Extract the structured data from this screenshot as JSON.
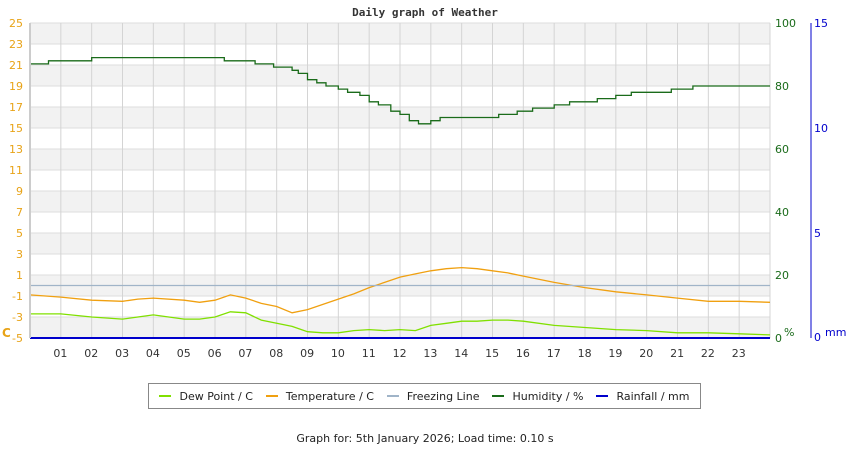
{
  "chart_data": {
    "type": "line",
    "title": "Daily graph of Weather",
    "x_ticks": [
      "01",
      "02",
      "03",
      "04",
      "05",
      "06",
      "07",
      "08",
      "09",
      "10",
      "11",
      "12",
      "13",
      "14",
      "15",
      "16",
      "17",
      "18",
      "19",
      "20",
      "21",
      "22",
      "23"
    ],
    "x_range_hours": [
      0,
      24
    ],
    "left_axis": {
      "label": "C",
      "range": [
        -5,
        25
      ],
      "ticks": [
        25,
        23,
        21,
        19,
        17,
        15,
        13,
        11,
        9,
        7,
        5,
        3,
        1,
        -1,
        -3,
        -5
      ],
      "color": "#e8a317"
    },
    "right_axis_humidity": {
      "label": "%",
      "range": [
        0,
        100
      ],
      "ticks": [
        100,
        80,
        60,
        40,
        20,
        0
      ],
      "color": "#1a6b1a"
    },
    "right_axis_rain": {
      "label": "mm",
      "range": [
        0,
        15
      ],
      "ticks": [
        15,
        10,
        5,
        0
      ],
      "color": "#0000cc"
    },
    "grid": true,
    "legend_position": "bottom",
    "series": [
      {
        "name": "Dew Point / C",
        "color": "#80e000",
        "axis": "left",
        "x": [
          0,
          1,
          2,
          3,
          3.5,
          4,
          5,
          5.5,
          6,
          6.5,
          7,
          7.5,
          8,
          8.5,
          9,
          9.5,
          10,
          10.5,
          11,
          11.5,
          12,
          12.5,
          13,
          13.5,
          14,
          14.5,
          15,
          15.5,
          16,
          17,
          18,
          19,
          20,
          21,
          22,
          23,
          24
        ],
        "y": [
          -2.7,
          -2.7,
          -3.0,
          -3.2,
          -3.0,
          -2.8,
          -3.2,
          -3.2,
          -3.0,
          -2.5,
          -2.6,
          -3.3,
          -3.6,
          -3.9,
          -4.4,
          -4.5,
          -4.5,
          -4.3,
          -4.2,
          -4.3,
          -4.2,
          -4.3,
          -3.8,
          -3.6,
          -3.4,
          -3.4,
          -3.3,
          -3.3,
          -3.4,
          -3.8,
          -4.0,
          -4.2,
          -4.3,
          -4.5,
          -4.5,
          -4.6,
          -4.7
        ]
      },
      {
        "name": "Temperature / C",
        "color": "#f0a010",
        "axis": "left",
        "x": [
          0,
          1,
          2,
          3,
          3.5,
          4,
          5,
          5.5,
          6,
          6.5,
          7,
          7.5,
          8,
          8.5,
          9,
          9.5,
          10,
          10.5,
          11,
          11.5,
          12,
          12.5,
          13,
          13.5,
          14,
          14.5,
          15,
          15.5,
          16,
          17,
          18,
          19,
          20,
          21,
          22,
          23,
          24
        ],
        "y": [
          -0.9,
          -1.1,
          -1.4,
          -1.5,
          -1.3,
          -1.2,
          -1.4,
          -1.6,
          -1.4,
          -0.9,
          -1.2,
          -1.7,
          -2.0,
          -2.6,
          -2.3,
          -1.8,
          -1.3,
          -0.8,
          -0.2,
          0.3,
          0.8,
          1.1,
          1.4,
          1.6,
          1.7,
          1.6,
          1.4,
          1.2,
          0.9,
          0.3,
          -0.2,
          -0.6,
          -0.9,
          -1.2,
          -1.5,
          -1.5,
          -1.6
        ]
      },
      {
        "name": "Freezing Line",
        "color": "#a0b4c8",
        "axis": "left",
        "x": [
          0,
          24
        ],
        "y": [
          0,
          0
        ]
      },
      {
        "name": "Humidity / %",
        "color": "#1a6b1a",
        "axis": "right",
        "x": [
          0,
          0.3,
          0.6,
          1.9,
          2.0,
          3.3,
          6.0,
          6.3,
          6.8,
          7.3,
          7.9,
          8.5,
          8.7,
          9.0,
          9.3,
          9.6,
          10.0,
          10.3,
          10.7,
          11.0,
          11.3,
          11.7,
          12.0,
          12.3,
          12.6,
          13.0,
          13.3,
          14.6,
          15.2,
          15.8,
          16.3,
          17.0,
          17.5,
          18.4,
          19.0,
          19.5,
          20.0,
          20.8,
          21.5,
          22.3,
          23.0,
          24.0
        ],
        "y": [
          87,
          87,
          88,
          88,
          89,
          89,
          89,
          88,
          88,
          87,
          86,
          85,
          84,
          82,
          81,
          80,
          79,
          78,
          77,
          75,
          74,
          72,
          71,
          69,
          68,
          69,
          70,
          70,
          71,
          72,
          73,
          74,
          75,
          76,
          77,
          78,
          78,
          79,
          80,
          80,
          80,
          80
        ]
      },
      {
        "name": "Rainfall / mm",
        "color": "#0000cc",
        "axis": "right_mm",
        "x": [
          0,
          24
        ],
        "y": [
          0,
          0
        ]
      }
    ]
  },
  "legend": {
    "items": [
      {
        "label": "Dew Point / C",
        "color": "#80e000"
      },
      {
        "label": "Temperature / C",
        "color": "#f0a010"
      },
      {
        "label": "Freezing Line",
        "color": "#a0b4c8"
      },
      {
        "label": "Humidity / %",
        "color": "#1a6b1a"
      },
      {
        "label": "Rainfall / mm",
        "color": "#0000cc"
      }
    ]
  },
  "footer": {
    "text": "Graph for: 5th January 2026; Load time: 0.10 s"
  }
}
